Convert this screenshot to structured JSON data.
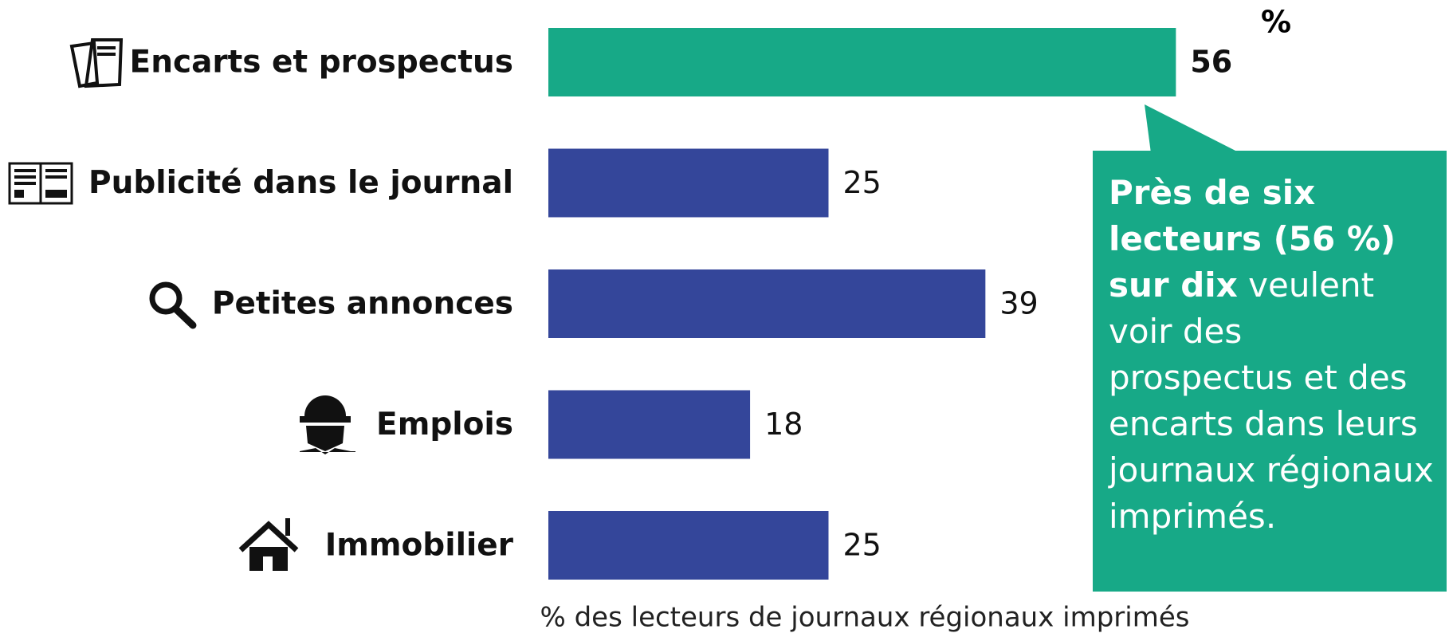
{
  "chart_data": {
    "type": "bar",
    "orientation": "horizontal",
    "unit_label": "%",
    "categories": [
      "Encarts et prospectus",
      "Publicité dans le journal",
      "Petites annonces",
      "Emplois",
      "Immobilier"
    ],
    "values": [
      56,
      25,
      39,
      18,
      25
    ],
    "colors": [
      "#17a987",
      "#34469a",
      "#34469a",
      "#34469a",
      "#34469a"
    ],
    "bold_value_index": 0,
    "xlabel": "% des lecteurs de journaux régionaux imprimés",
    "annotation": {
      "bold": "Près de six lecteurs (56 %) sur dix",
      "text": "veulent voir des prospectus et des encarts dans leurs journaux régionaux imprimés.",
      "color": "#17a987"
    }
  }
}
